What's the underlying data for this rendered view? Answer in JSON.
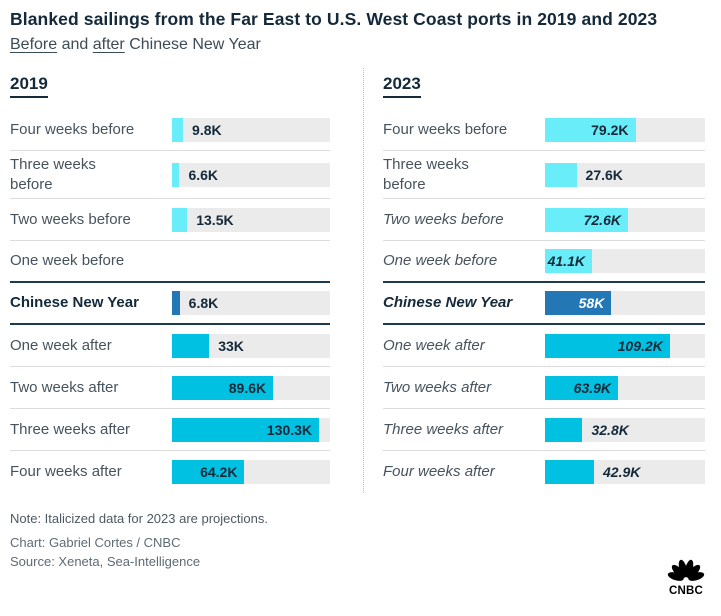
{
  "header": {
    "title": "Blanked sailings from the Far East to U.S. West Coast ports in 2019 and 2023",
    "subtitle_parts": [
      {
        "text": "Before",
        "underline": true
      },
      {
        "text": " and ",
        "underline": false
      },
      {
        "text": "after",
        "underline": true
      },
      {
        "text": " Chinese New Year",
        "underline": false
      }
    ]
  },
  "colors": {
    "before": "#69edf8",
    "after": "#00c1e1",
    "cny": "#2377b4",
    "track": "#ebebeb",
    "navy_text": "#14293a",
    "label_text": "#46535e",
    "dark_separator": "#1e3a4f",
    "light_separator": "#dcdcdc"
  },
  "columns": [
    {
      "year": "2019",
      "rows": [
        {
          "label": "Four weeks before",
          "value": 9.8,
          "value_label": "9.8K",
          "bar_color": "before",
          "italic": false,
          "bold": false,
          "value_inside": false,
          "value_white": false
        },
        {
          "label": "Three weeks\nbefore",
          "value": 6.6,
          "value_label": "6.6K",
          "bar_color": "before",
          "italic": false,
          "bold": false,
          "value_inside": false,
          "value_white": false
        },
        {
          "label": "Two weeks before",
          "value": 13.5,
          "value_label": "13.5K",
          "bar_color": "before",
          "italic": false,
          "bold": false,
          "value_inside": false,
          "value_white": false
        },
        {
          "label": "One week before",
          "value": null,
          "value_label": "",
          "bar_color": null,
          "italic": false,
          "bold": false,
          "value_inside": false,
          "value_white": false
        },
        {
          "label": "Chinese New Year",
          "value": 6.8,
          "value_label": "6.8K",
          "bar_color": "cny",
          "italic": false,
          "bold": true,
          "value_inside": false,
          "value_white": false
        },
        {
          "label": "One week after",
          "value": 33,
          "value_label": "33K",
          "bar_color": "after",
          "italic": false,
          "bold": false,
          "value_inside": false,
          "value_white": false
        },
        {
          "label": "Two weeks after",
          "value": 89.6,
          "value_label": "89.6K",
          "bar_color": "after",
          "italic": false,
          "bold": false,
          "value_inside": true,
          "value_white": false
        },
        {
          "label": "Three weeks after",
          "value": 130.3,
          "value_label": "130.3K",
          "bar_color": "after",
          "italic": false,
          "bold": false,
          "value_inside": true,
          "value_white": false
        },
        {
          "label": "Four weeks after",
          "value": 64.2,
          "value_label": "64.2K",
          "bar_color": "after",
          "italic": false,
          "bold": false,
          "value_inside": true,
          "value_white": false
        }
      ]
    },
    {
      "year": "2023",
      "rows": [
        {
          "label": "Four weeks before",
          "value": 79.2,
          "value_label": "79.2K",
          "bar_color": "before",
          "italic": false,
          "bold": false,
          "value_inside": true,
          "value_white": false
        },
        {
          "label": "Three weeks\nbefore",
          "value": 27.6,
          "value_label": "27.6K",
          "bar_color": "before",
          "italic": false,
          "bold": false,
          "value_inside": false,
          "value_white": false
        },
        {
          "label": "Two weeks before",
          "value": 72.6,
          "value_label": "72.6K",
          "bar_color": "before",
          "italic": true,
          "bold": false,
          "value_inside": true,
          "value_white": false
        },
        {
          "label": "One week before",
          "value": 41.1,
          "value_label": "41.1K",
          "bar_color": "before",
          "italic": true,
          "bold": false,
          "value_inside": true,
          "value_white": false
        },
        {
          "label": "Chinese New Year",
          "value": 58,
          "value_label": "58K",
          "bar_color": "cny",
          "italic": true,
          "bold": true,
          "value_inside": true,
          "value_white": true
        },
        {
          "label": "One week after",
          "value": 109.2,
          "value_label": "109.2K",
          "bar_color": "after",
          "italic": true,
          "bold": false,
          "value_inside": true,
          "value_white": false
        },
        {
          "label": "Two weeks after",
          "value": 63.9,
          "value_label": "63.9K",
          "bar_color": "after",
          "italic": true,
          "bold": false,
          "value_inside": true,
          "value_white": false
        },
        {
          "label": "Three weeks after",
          "value": 32.8,
          "value_label": "32.8K",
          "bar_color": "after",
          "italic": true,
          "bold": false,
          "value_inside": false,
          "value_white": false
        },
        {
          "label": "Four weeks after",
          "value": 42.9,
          "value_label": "42.9K",
          "bar_color": "after",
          "italic": true,
          "bold": false,
          "value_inside": false,
          "value_white": false
        }
      ]
    }
  ],
  "footer": {
    "note": "Note: Italicized data for 2023 are projections.",
    "credit": "Chart: Gabriel Cortes / CNBC",
    "source": "Source: Xeneta, Sea-Intelligence",
    "logo_text": "CNBC"
  },
  "chart_data": {
    "type": "bar",
    "orientation": "horizontal",
    "title": "Blanked sailings from the Far East to U.S. West Coast ports in 2019 and 2023",
    "subtitle": "Before and after Chinese New Year",
    "categories": [
      "Four weeks before",
      "Three weeks before",
      "Two weeks before",
      "One week before",
      "Chinese New Year",
      "One week after",
      "Two weeks after",
      "Three weeks after",
      "Four weeks after"
    ],
    "series": [
      {
        "name": "2019",
        "values": [
          9.8,
          6.6,
          13.5,
          null,
          6.8,
          33,
          89.6,
          130.3,
          64.2
        ],
        "value_labels": [
          "9.8K",
          "6.6K",
          "13.5K",
          "",
          "6.8K",
          "33K",
          "89.6K",
          "130.3K",
          "64.2K"
        ]
      },
      {
        "name": "2023",
        "values": [
          79.2,
          27.6,
          72.6,
          41.1,
          58,
          109.2,
          63.9,
          32.8,
          42.9
        ],
        "value_labels": [
          "79.2K",
          "27.6K",
          "72.6K",
          "41.1K",
          "58K",
          "109.2K",
          "63.9K",
          "32.8K",
          "42.9K"
        ],
        "projected_categories": [
          "Two weeks before",
          "One week before",
          "Chinese New Year",
          "One week after",
          "Two weeks after",
          "Three weeks after",
          "Four weeks after"
        ]
      }
    ],
    "xlim": [
      0,
      140
    ],
    "grid": false,
    "legend": "none",
    "highlight_category": "Chinese New Year",
    "note": "Italicized data for 2023 are projections."
  }
}
